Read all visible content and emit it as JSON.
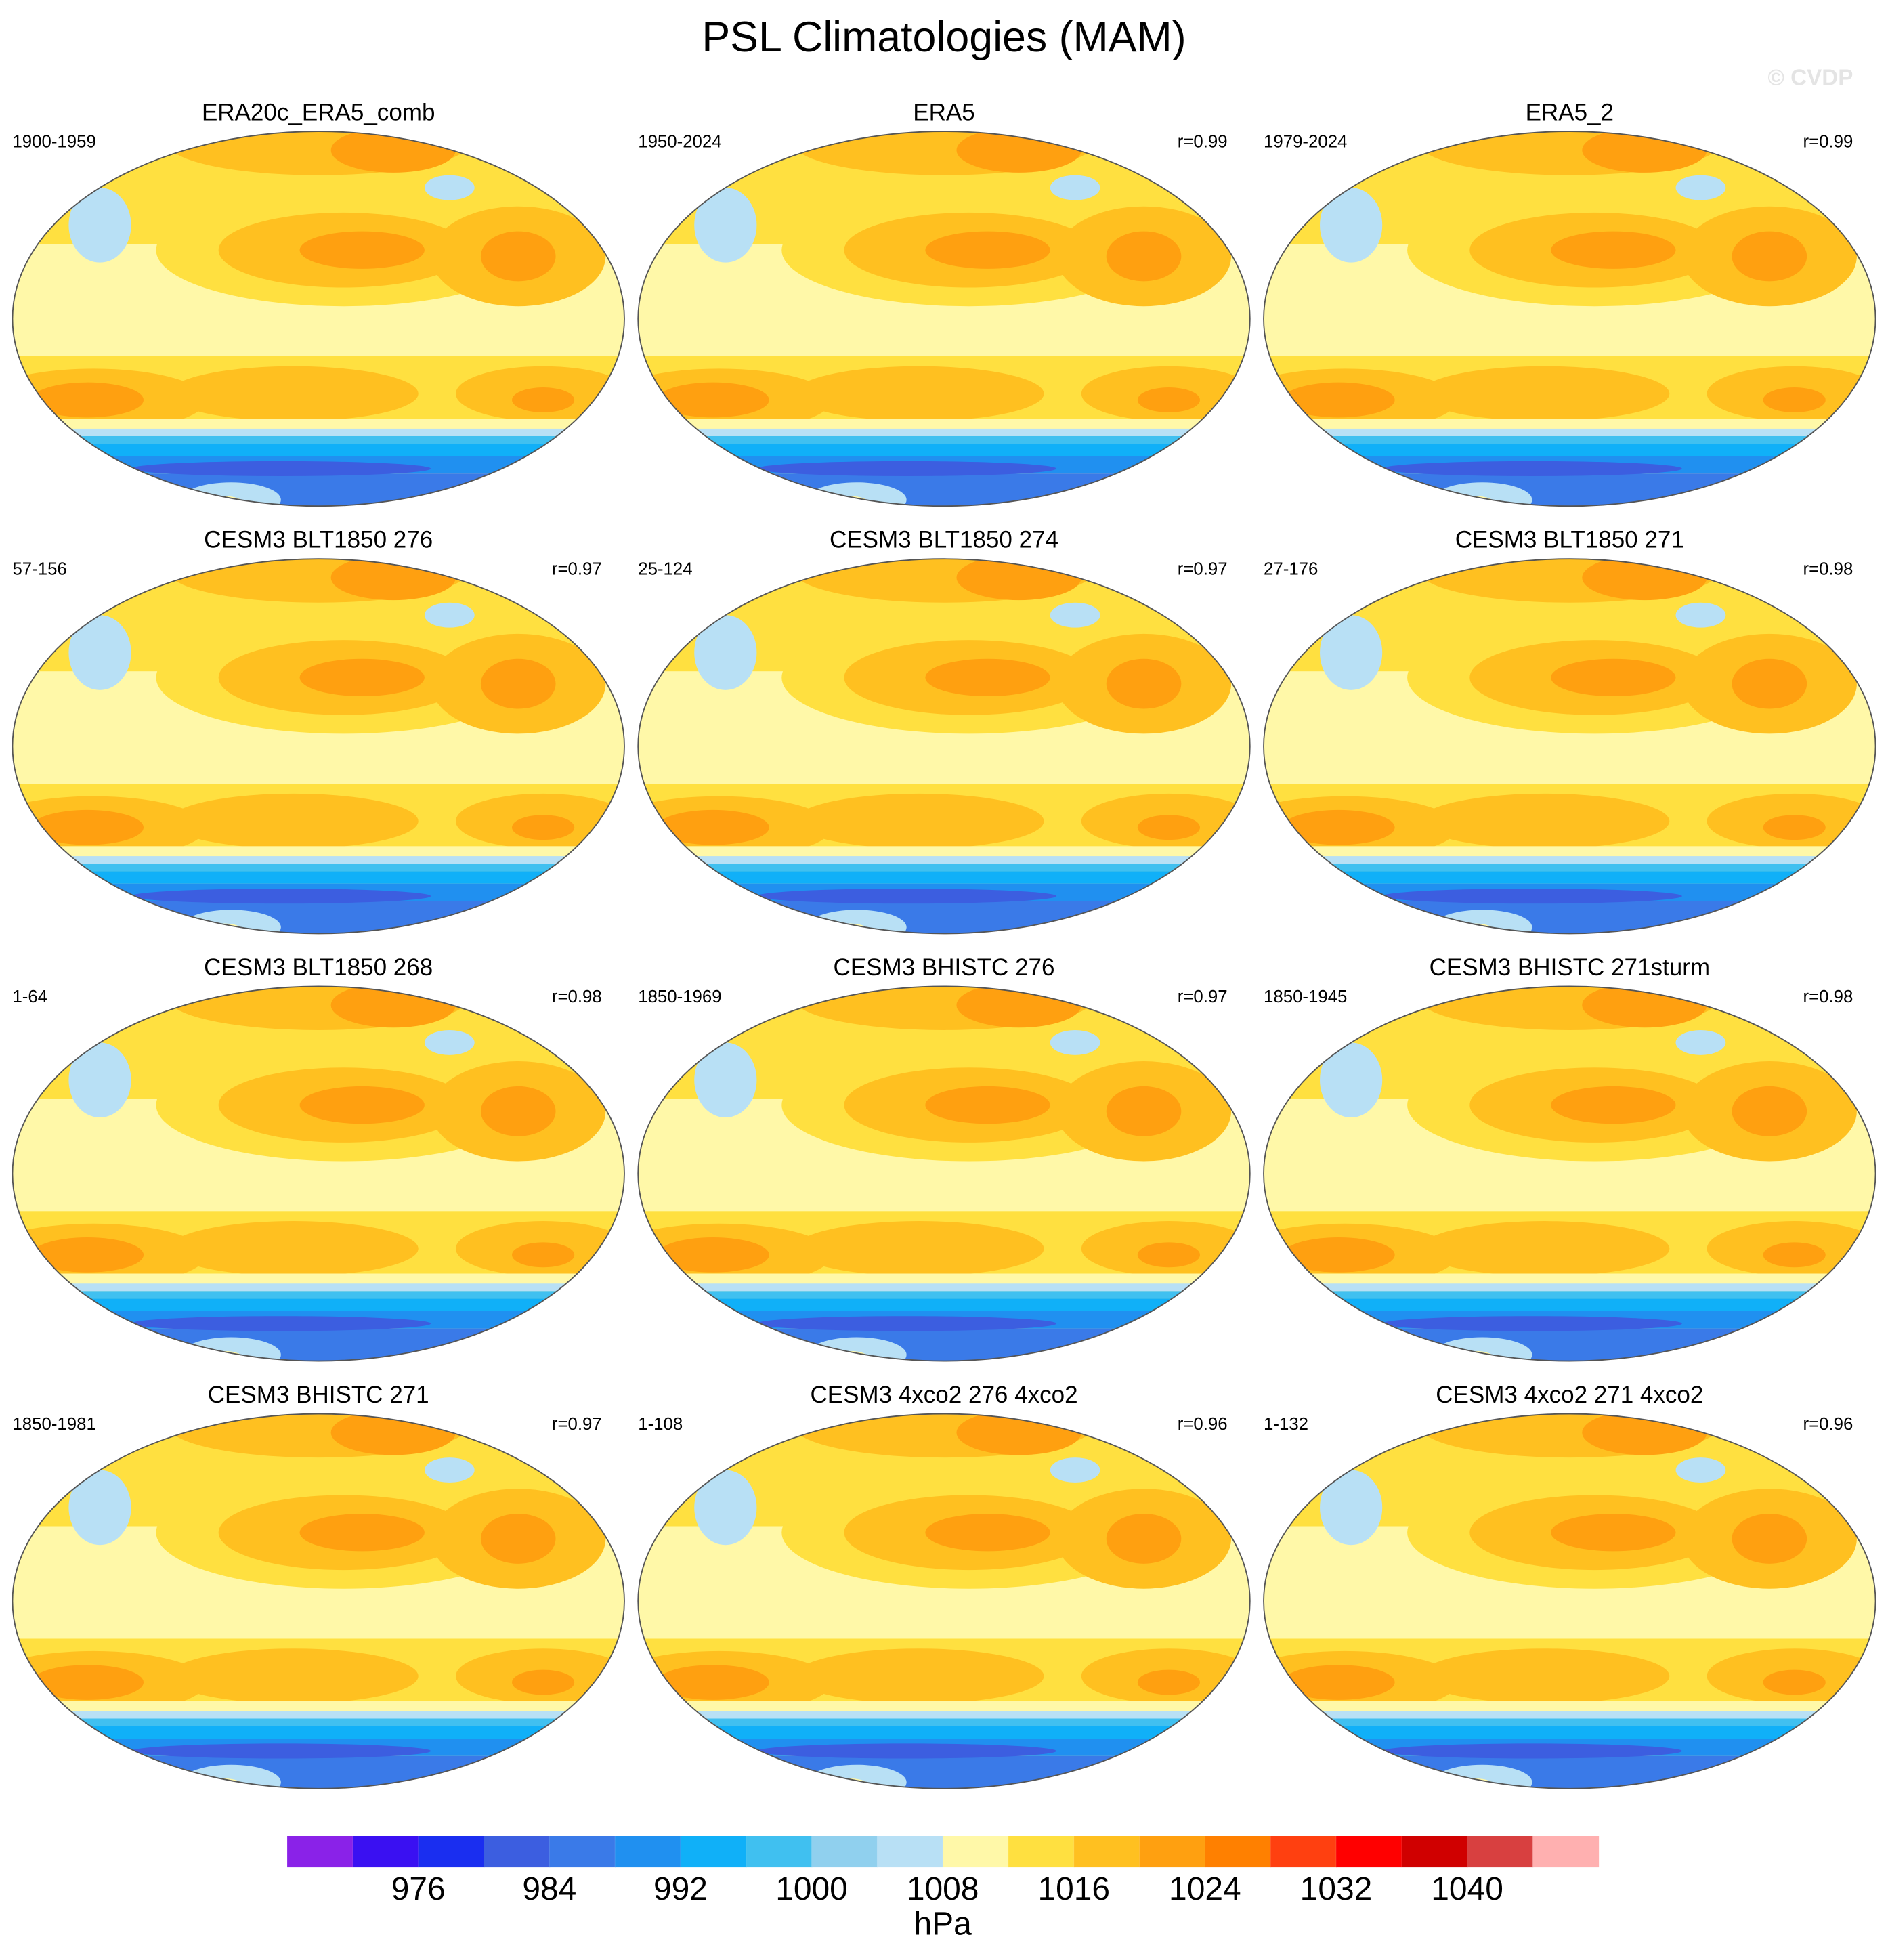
{
  "title": "PSL Climatologies (MAM)",
  "watermark": "© CVDP",
  "panels": [
    {
      "title": "ERA20c_ERA5_comb",
      "period": "1900-1959"
    },
    {
      "title": "ERA5",
      "period": "1950-2024",
      "r": "r=0.99"
    },
    {
      "title": "ERA5_2",
      "period": "1979-2024",
      "r": "r=0.99"
    },
    {
      "title": "CESM3 BLT1850 276",
      "period": "57-156",
      "r": "r=0.97"
    },
    {
      "title": "CESM3 BLT1850 274",
      "period": "25-124",
      "r": "r=0.97"
    },
    {
      "title": "CESM3 BLT1850 271",
      "period": "27-176",
      "r": "r=0.98"
    },
    {
      "title": "CESM3 BLT1850 268",
      "period": "1-64",
      "r": "r=0.98"
    },
    {
      "title": "CESM3 BHISTC 276",
      "period": "1850-1969",
      "r": "r=0.97"
    },
    {
      "title": "CESM3 BHISTC 271sturm",
      "period": "1850-1945",
      "r": "r=0.98"
    },
    {
      "title": "CESM3 BHISTC 271",
      "period": "1850-1981",
      "r": "r=0.97"
    },
    {
      "title": "CESM3 4xco2 276 4xco2",
      "period": "1-108",
      "r": "r=0.96"
    },
    {
      "title": "CESM3 4xco2 271 4xco2",
      "period": "1-132",
      "r": "r=0.96"
    }
  ],
  "colorbar": {
    "unit": "hPa",
    "range": [
      968,
      1048
    ],
    "levels": [
      972,
      976,
      980,
      984,
      988,
      992,
      996,
      1000,
      1004,
      1008,
      1012,
      1016,
      1020,
      1024,
      1028,
      1032,
      1036,
      1040,
      1044
    ],
    "ticks": [
      976,
      984,
      992,
      1000,
      1008,
      1016,
      1024,
      1032,
      1040
    ],
    "colors": [
      "#8a22e8",
      "#3a10f2",
      "#1a2ef0",
      "#3c5ee0",
      "#3a7ae8",
      "#2090f0",
      "#10b0f8",
      "#40c0f0",
      "#90d0ee",
      "#b8e0f5",
      "#fff8a8",
      "#ffe040",
      "#ffc020",
      "#ffa010",
      "#ff8000",
      "#ff4010",
      "#ff0000",
      "#d00000",
      "#d84040",
      "#ffb0b0"
    ]
  }
}
